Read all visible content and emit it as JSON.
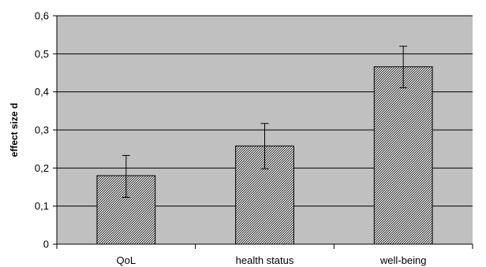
{
  "chart_data": {
    "type": "bar",
    "title": "",
    "xlabel": "",
    "ylabel": "effect size d",
    "categories": [
      "QoL",
      "health status",
      "well-being"
    ],
    "values": [
      0.18,
      0.258,
      0.466
    ],
    "error_low": [
      0.123,
      0.198,
      0.411
    ],
    "error_high": [
      0.233,
      0.317,
      0.52
    ],
    "ylim": [
      0,
      0.6
    ],
    "yticks": [
      0,
      0.1,
      0.2,
      0.3,
      0.4,
      0.5,
      0.6
    ],
    "ytick_labels": [
      "0",
      "0,1",
      "0,2",
      "0,3",
      "0,4",
      "0,5",
      "0,6"
    ],
    "grid": "horizontal",
    "plot_background": "#c0c0c0",
    "bar_fill": "hatched",
    "bar_color": "#000000"
  }
}
